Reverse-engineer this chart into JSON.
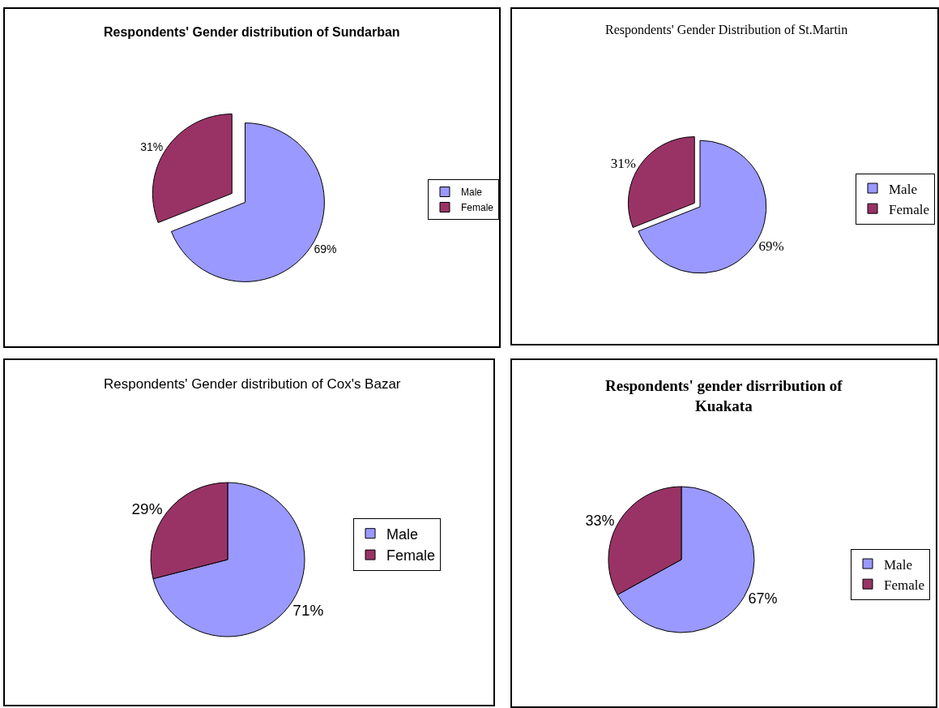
{
  "chart_data": [
    {
      "type": "pie",
      "title": "Respondents' Gender distribution of Sundarban",
      "categories": [
        "Male",
        "Female"
      ],
      "values": [
        69,
        31
      ],
      "colors": [
        "#9999ff",
        "#993366"
      ],
      "value_labels": [
        "69%",
        "31%"
      ],
      "legend": "right"
    },
    {
      "type": "pie",
      "title": "Respondents' Gender Distribution of St.Martin",
      "categories": [
        "Male",
        "Female"
      ],
      "values": [
        69,
        31
      ],
      "colors": [
        "#9999ff",
        "#993366"
      ],
      "value_labels": [
        "69%",
        "31%"
      ],
      "legend": "right"
    },
    {
      "type": "pie",
      "title": "Respondents' Gender distribution of Cox's Bazar",
      "categories": [
        "Male",
        "Female"
      ],
      "values": [
        71,
        29
      ],
      "colors": [
        "#9999ff",
        "#993366"
      ],
      "value_labels": [
        "71%",
        "29%"
      ],
      "legend": "right"
    },
    {
      "type": "pie",
      "title": "Respondents' gender disrribution of Kuakata",
      "categories": [
        "Male",
        "Female"
      ],
      "values": [
        67,
        33
      ],
      "colors": [
        "#9999ff",
        "#993366"
      ],
      "value_labels": [
        "67%",
        "33%"
      ],
      "legend": "right"
    }
  ]
}
